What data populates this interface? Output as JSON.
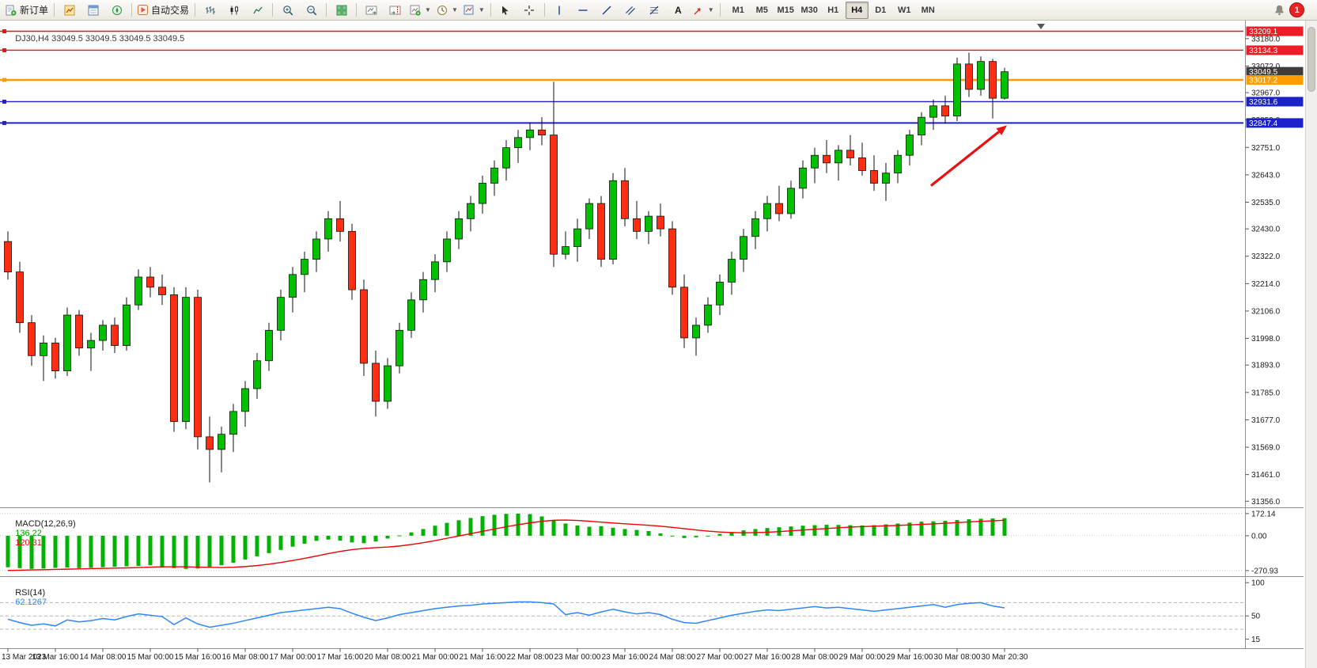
{
  "toolbar": {
    "new_order_label": "新订单",
    "autotrading_label": "自动交易",
    "text_tool_label": "A",
    "timeframes": [
      "M1",
      "M5",
      "M15",
      "M30",
      "H1",
      "H4",
      "D1",
      "W1",
      "MN"
    ],
    "active_timeframe": "H4",
    "notification_count": "1"
  },
  "chart": {
    "title": "DJ30,H4 33049.5 33049.5 33049.5 33049.5",
    "symbol": "DJ30",
    "period": "H4"
  },
  "indicators": {
    "macd": {
      "label": "MACD(12,26,9)",
      "main_value": "136.22",
      "signal_value": "120.31"
    },
    "rsi": {
      "label": "RSI(14)",
      "value": "62.1267"
    }
  },
  "chart_data": {
    "type": "candlestick",
    "symbol": "DJ30",
    "timeframe": "H4",
    "current_price": 33049.5,
    "y_range": [
      31335,
      33245
    ],
    "y_ticks": [
      "33180.0",
      "33072.0",
      "32967.0",
      "32859.0",
      "32751.0",
      "32643.0",
      "32535.0",
      "32430.0",
      "32322.0",
      "32214.0",
      "32106.0",
      "31998.0",
      "31893.0",
      "31785.0",
      "31677.0",
      "31569.0",
      "31461.0",
      "31356.0"
    ],
    "price_labels": [
      {
        "price": 33209.1,
        "text": "33209.1",
        "bg": "#ee1c25"
      },
      {
        "price": 33134.3,
        "text": "33134.3",
        "bg": "#ee1c25"
      },
      {
        "price": 33049.5,
        "text": "33049.5",
        "bg": "#3d3d3d"
      },
      {
        "price": 33017.2,
        "text": "33017.2",
        "bg": "#ff9c00"
      },
      {
        "price": 32931.6,
        "text": "32931.6",
        "bg": "#1b23c8"
      },
      {
        "price": 32847.4,
        "text": "32847.4",
        "bg": "#1b23c8"
      }
    ],
    "price_lines": [
      {
        "price": 33209.1,
        "color": "#e81515",
        "width": 1.4
      },
      {
        "price": 33134.3,
        "color": "#e81515",
        "width": 1.4
      },
      {
        "price": 33017.2,
        "color": "#ff9c00",
        "width": 2.4
      },
      {
        "price": 32931.6,
        "color": "#2020cc",
        "width": 1.4
      },
      {
        "price": 32847.4,
        "color": "#2020cc",
        "width": 2
      }
    ],
    "x_labels": [
      "13 Mar 2023",
      "13 Mar 16:00",
      "14 Mar 08:00",
      "15 Mar 00:00",
      "15 Mar 16:00",
      "16 Mar 08:00",
      "17 Mar 00:00",
      "17 Mar 16:00",
      "20 Mar 08:00",
      "21 Mar 00:00",
      "21 Mar 16:00",
      "22 Mar 08:00",
      "23 Mar 00:00",
      "23 Mar 16:00",
      "24 Mar 08:00",
      "27 Mar 00:00",
      "27 Mar 16:00",
      "28 Mar 08:00",
      "29 Mar 00:00",
      "29 Mar 16:00",
      "30 Mar 08:00",
      "30 Mar 20:30"
    ],
    "x_label_every": 4,
    "ohlc": [
      [
        32380,
        32420,
        32230,
        32260
      ],
      [
        32260,
        32300,
        32020,
        32060
      ],
      [
        32060,
        32090,
        31890,
        31930
      ],
      [
        31930,
        32010,
        31830,
        31980
      ],
      [
        31980,
        32000,
        31840,
        31870
      ],
      [
        31870,
        32120,
        31850,
        32090
      ],
      [
        32090,
        32110,
        31930,
        31960
      ],
      [
        31960,
        32020,
        31870,
        31990
      ],
      [
        31990,
        32070,
        31950,
        32050
      ],
      [
        32050,
        32080,
        31940,
        31970
      ],
      [
        31970,
        32160,
        31950,
        32130
      ],
      [
        32130,
        32270,
        32110,
        32240
      ],
      [
        32240,
        32280,
        32160,
        32200
      ],
      [
        32200,
        32250,
        32130,
        32170
      ],
      [
        32170,
        32200,
        31630,
        31670
      ],
      [
        31670,
        32200,
        31640,
        32160
      ],
      [
        32160,
        32190,
        31560,
        31610
      ],
      [
        31610,
        31690,
        31430,
        31560
      ],
      [
        31560,
        31650,
        31470,
        31620
      ],
      [
        31620,
        31740,
        31550,
        31710
      ],
      [
        31710,
        31830,
        31650,
        31800
      ],
      [
        31800,
        31940,
        31760,
        31910
      ],
      [
        31910,
        32060,
        31870,
        32030
      ],
      [
        32030,
        32190,
        31990,
        32160
      ],
      [
        32160,
        32280,
        32100,
        32250
      ],
      [
        32250,
        32340,
        32180,
        32310
      ],
      [
        32310,
        32420,
        32260,
        32390
      ],
      [
        32390,
        32500,
        32340,
        32470
      ],
      [
        32470,
        32540,
        32380,
        32420
      ],
      [
        32420,
        32450,
        32150,
        32190
      ],
      [
        32190,
        32230,
        31850,
        31900
      ],
      [
        31900,
        31950,
        31690,
        31750
      ],
      [
        31750,
        31920,
        31720,
        31890
      ],
      [
        31890,
        32060,
        31860,
        32030
      ],
      [
        32030,
        32180,
        32000,
        32150
      ],
      [
        32150,
        32260,
        32100,
        32230
      ],
      [
        32230,
        32330,
        32180,
        32300
      ],
      [
        32300,
        32420,
        32260,
        32390
      ],
      [
        32390,
        32500,
        32350,
        32470
      ],
      [
        32470,
        32560,
        32420,
        32530
      ],
      [
        32530,
        32640,
        32490,
        32610
      ],
      [
        32610,
        32700,
        32560,
        32670
      ],
      [
        32670,
        32780,
        32620,
        32750
      ],
      [
        32750,
        32820,
        32690,
        32790
      ],
      [
        32790,
        32850,
        32740,
        32820
      ],
      [
        32820,
        32870,
        32760,
        32800
      ],
      [
        32800,
        33010,
        32280,
        32330
      ],
      [
        32330,
        32420,
        32310,
        32360
      ],
      [
        32360,
        32470,
        32300,
        32430
      ],
      [
        32430,
        32550,
        32390,
        32530
      ],
      [
        32530,
        32560,
        32280,
        32310
      ],
      [
        32310,
        32650,
        32290,
        32620
      ],
      [
        32620,
        32670,
        32440,
        32470
      ],
      [
        32470,
        32540,
        32390,
        32420
      ],
      [
        32420,
        32500,
        32370,
        32480
      ],
      [
        32480,
        32530,
        32400,
        32430
      ],
      [
        32430,
        32460,
        32170,
        32200
      ],
      [
        32200,
        32250,
        31960,
        32000
      ],
      [
        32000,
        32080,
        31930,
        32050
      ],
      [
        32050,
        32160,
        32020,
        32130
      ],
      [
        32130,
        32250,
        32090,
        32220
      ],
      [
        32220,
        32340,
        32170,
        32310
      ],
      [
        32310,
        32430,
        32260,
        32400
      ],
      [
        32400,
        32500,
        32350,
        32470
      ],
      [
        32470,
        32560,
        32420,
        32530
      ],
      [
        32530,
        32600,
        32460,
        32490
      ],
      [
        32490,
        32620,
        32470,
        32590
      ],
      [
        32590,
        32700,
        32550,
        32670
      ],
      [
        32670,
        32750,
        32610,
        32720
      ],
      [
        32720,
        32780,
        32650,
        32690
      ],
      [
        32690,
        32760,
        32620,
        32740
      ],
      [
        32740,
        32800,
        32680,
        32710
      ],
      [
        32710,
        32770,
        32640,
        32660
      ],
      [
        32660,
        32720,
        32580,
        32610
      ],
      [
        32610,
        32690,
        32540,
        32650
      ],
      [
        32650,
        32740,
        32610,
        32720
      ],
      [
        32720,
        32820,
        32680,
        32800
      ],
      [
        32800,
        32890,
        32760,
        32870
      ],
      [
        32870,
        32940,
        32820,
        32915
      ],
      [
        32915,
        32955,
        32845,
        32875
      ],
      [
        32875,
        33105,
        32855,
        33080
      ],
      [
        33080,
        33125,
        32950,
        32980
      ],
      [
        32980,
        33110,
        32955,
        33090
      ],
      [
        33090,
        33100,
        32865,
        32945
      ],
      [
        32945,
        33065,
        32940,
        33049.5
      ]
    ],
    "macd": {
      "axis": [
        {
          "value": 172.14,
          "label": "172.14"
        },
        {
          "value": 0,
          "label": "0.00"
        },
        {
          "value": -270.93,
          "label": "-270.93"
        }
      ],
      "range": [
        -290,
        190
      ],
      "histogram": [
        -245,
        -252,
        -258,
        -255,
        -250,
        -248,
        -252,
        -249,
        -245,
        -242,
        -238,
        -235,
        -230,
        -248,
        -252,
        -258,
        -255,
        -245,
        -230,
        -210,
        -185,
        -160,
        -135,
        -110,
        -85,
        -62,
        -40,
        -30,
        -38,
        -52,
        -58,
        -45,
        -22,
        2,
        26,
        52,
        78,
        100,
        120,
        138,
        152,
        163,
        170,
        172,
        168,
        150,
        118,
        95,
        80,
        70,
        74,
        62,
        52,
        45,
        36,
        18,
        -6,
        -18,
        -12,
        0,
        14,
        28,
        42,
        52,
        60,
        66,
        72,
        78,
        82,
        85,
        84,
        82,
        80,
        82,
        88,
        95,
        102,
        109,
        112,
        116,
        122,
        128,
        132,
        134,
        136.22
      ],
      "signal": [
        -270,
        -268,
        -266,
        -264,
        -262,
        -260,
        -258,
        -256,
        -254,
        -252,
        -250,
        -247,
        -244,
        -242,
        -241,
        -242,
        -244,
        -246,
        -247,
        -245,
        -240,
        -232,
        -221,
        -208,
        -193,
        -176,
        -158,
        -139,
        -122,
        -108,
        -99,
        -93,
        -88,
        -80,
        -68,
        -54,
        -38,
        -20,
        -2,
        16,
        34,
        52,
        70,
        86,
        100,
        112,
        120,
        122,
        119,
        113,
        106,
        99,
        93,
        87,
        81,
        74,
        65,
        55,
        45,
        36,
        29,
        25,
        23,
        24,
        27,
        32,
        38,
        44,
        50,
        56,
        62,
        67,
        71,
        74,
        77,
        80,
        84,
        88,
        92,
        97,
        102,
        107,
        112,
        116,
        120.31
      ]
    },
    "rsi": {
      "axis": [
        {
          "value": 100,
          "label": "100"
        },
        {
          "value": 50,
          "label": "50"
        },
        {
          "value": 15,
          "label": "15"
        }
      ],
      "levels": [
        70,
        50,
        30
      ],
      "range": [
        5,
        105
      ],
      "values": [
        45,
        40,
        36,
        38,
        35,
        44,
        41,
        43,
        46,
        44,
        49,
        53,
        51,
        49,
        37,
        47,
        38,
        33,
        36,
        39,
        43,
        47,
        51,
        55,
        57,
        59,
        61,
        63,
        61,
        54,
        48,
        43,
        47,
        52,
        55,
        58,
        61,
        63,
        65,
        66,
        68,
        69,
        70,
        71,
        71,
        70,
        68,
        52,
        55,
        51,
        56,
        60,
        56,
        53,
        55,
        52,
        45,
        40,
        39,
        43,
        47,
        51,
        54,
        57,
        59,
        58,
        60,
        62,
        64,
        62,
        63,
        61,
        59,
        57,
        59,
        61,
        63,
        65,
        67,
        63,
        67,
        69,
        70,
        65,
        62.13
      ]
    },
    "arrow": {
      "x1_bar": 77.8,
      "y1_price": 32600,
      "x2_bar": 84.2,
      "y2_price": 32838,
      "color": "#e81010"
    }
  }
}
